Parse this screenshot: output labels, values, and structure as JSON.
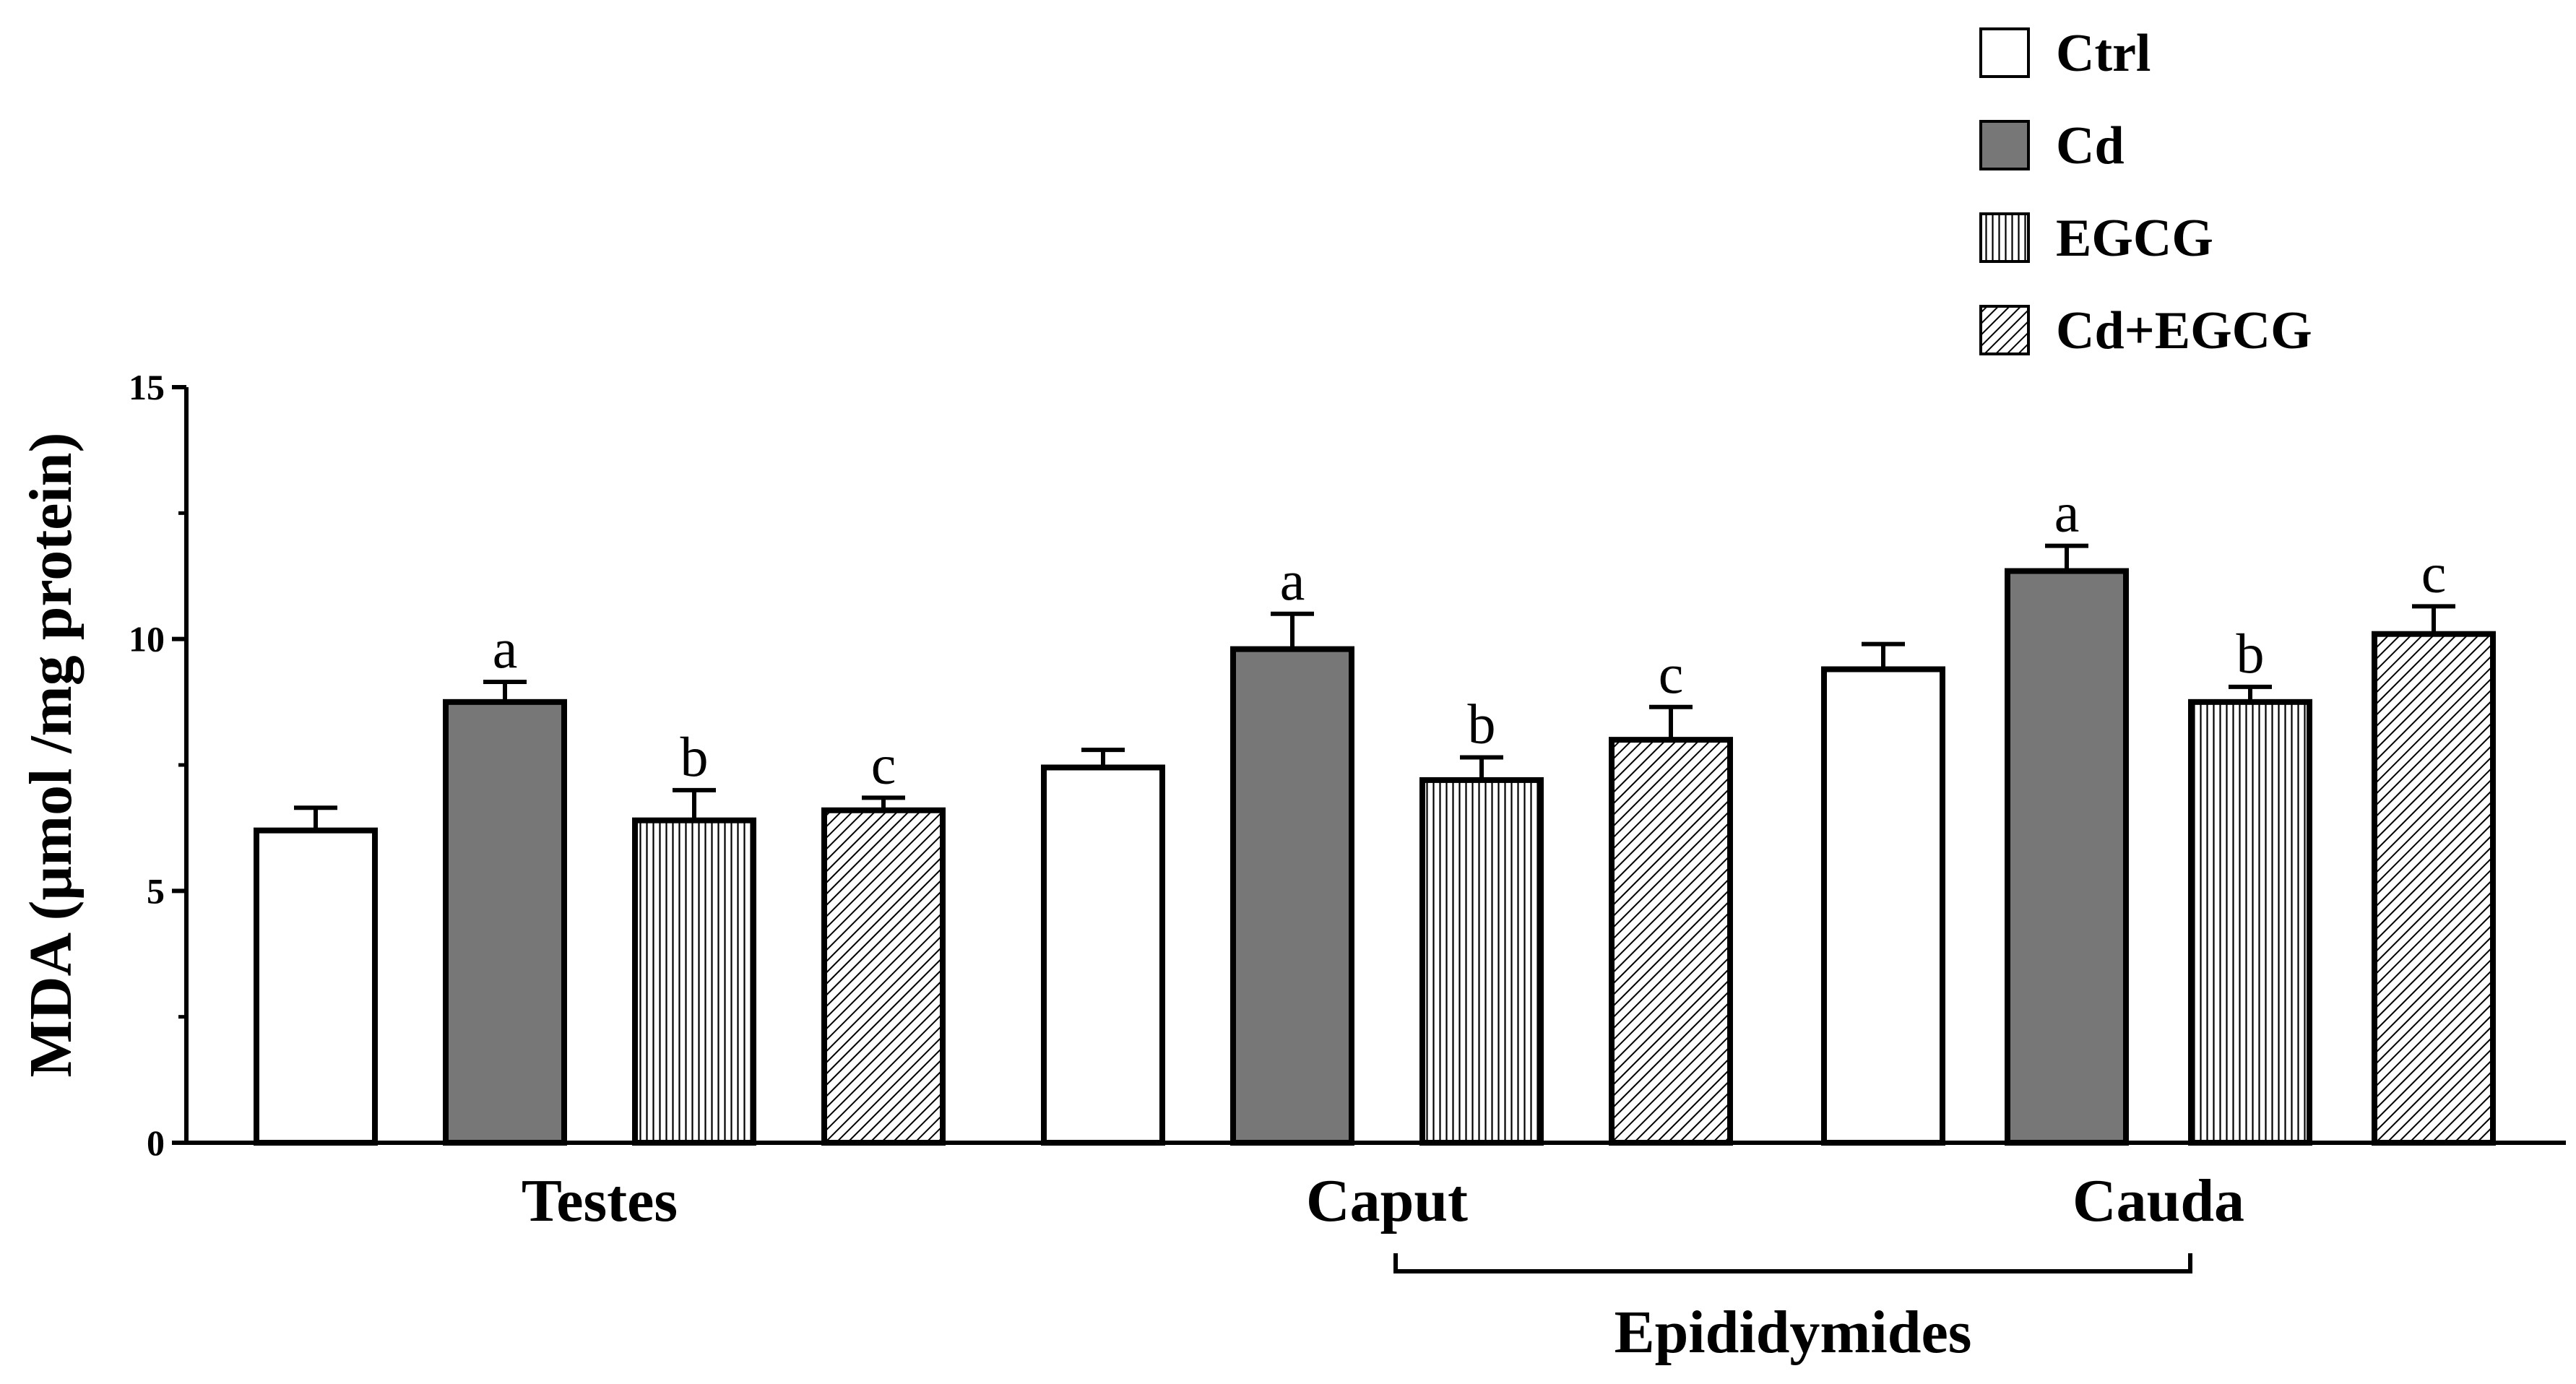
{
  "chart_data": {
    "type": "bar",
    "title": "",
    "ylabel": "MDA (μmol /mg protein)",
    "xlabel": "",
    "ylim": [
      0,
      15
    ],
    "yticks": [
      0,
      5,
      10,
      15
    ],
    "categories": [
      "Testes",
      "Caput",
      "Cauda"
    ],
    "group_bracket": {
      "label": "Epididymides",
      "spans": [
        "Caput",
        "Cauda"
      ]
    },
    "series": [
      {
        "name": "Ctrl",
        "pattern": "white",
        "values": [
          6.2,
          7.45,
          9.4
        ],
        "errors": [
          0.45,
          0.35,
          0.5
        ],
        "sig": [
          "",
          "",
          ""
        ]
      },
      {
        "name": "Cd",
        "pattern": "gray",
        "values": [
          8.75,
          9.8,
          11.35
        ],
        "errors": [
          0.4,
          0.7,
          0.5
        ],
        "sig": [
          "a",
          "a",
          "a"
        ]
      },
      {
        "name": "EGCG",
        "pattern": "vertical-lines",
        "values": [
          6.4,
          7.2,
          8.75
        ],
        "errors": [
          0.6,
          0.45,
          0.3
        ],
        "sig": [
          "b",
          "b",
          "b"
        ]
      },
      {
        "name": "Cd+EGCG",
        "pattern": "diagonal-lines",
        "values": [
          6.6,
          8.0,
          10.1
        ],
        "errors": [
          0.25,
          0.65,
          0.55
        ],
        "sig": [
          "c",
          "c",
          "c"
        ]
      }
    ],
    "legend": "top-right",
    "colors": {
      "gray": "#777777",
      "stroke": "#000000",
      "fill_white": "#ffffff"
    }
  }
}
